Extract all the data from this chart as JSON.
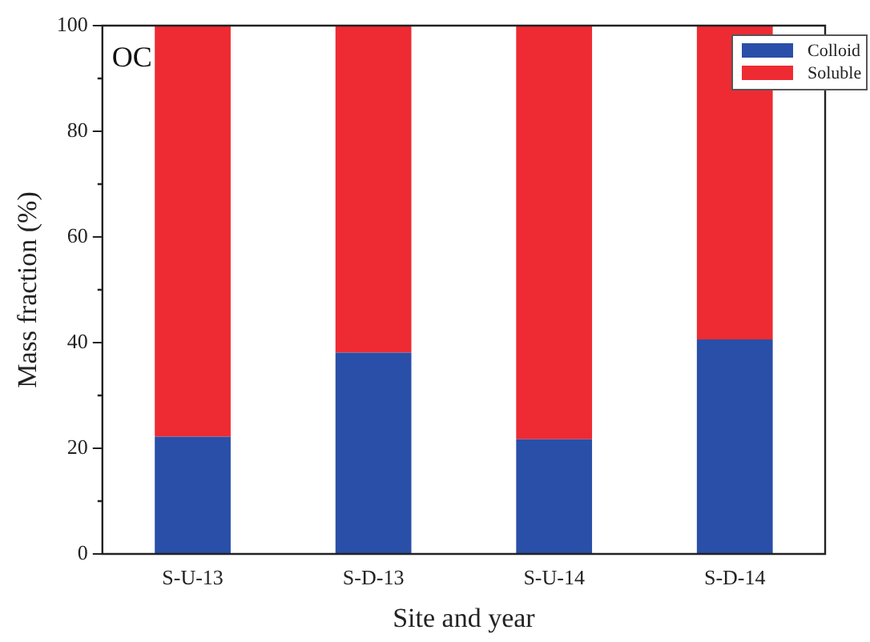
{
  "chart_data": {
    "type": "bar",
    "title": "OC",
    "xlabel": "Site and year",
    "ylabel": "Mass fraction (%)",
    "categories": [
      "S-U-13",
      "S-D-13",
      "S-U-14",
      "S-D-14"
    ],
    "stacked": true,
    "ylim": [
      0,
      100
    ],
    "yticks": [
      0,
      20,
      40,
      60,
      80,
      100
    ],
    "grid": false,
    "legend": "top right",
    "series": [
      {
        "name": "Colloid",
        "color": "#2a4fa8",
        "values": [
          22.2,
          38.1,
          21.7,
          40.6
        ]
      },
      {
        "name": "Soluble",
        "color": "#ee2b33",
        "values": [
          77.8,
          61.9,
          78.3,
          59.4
        ]
      }
    ]
  }
}
